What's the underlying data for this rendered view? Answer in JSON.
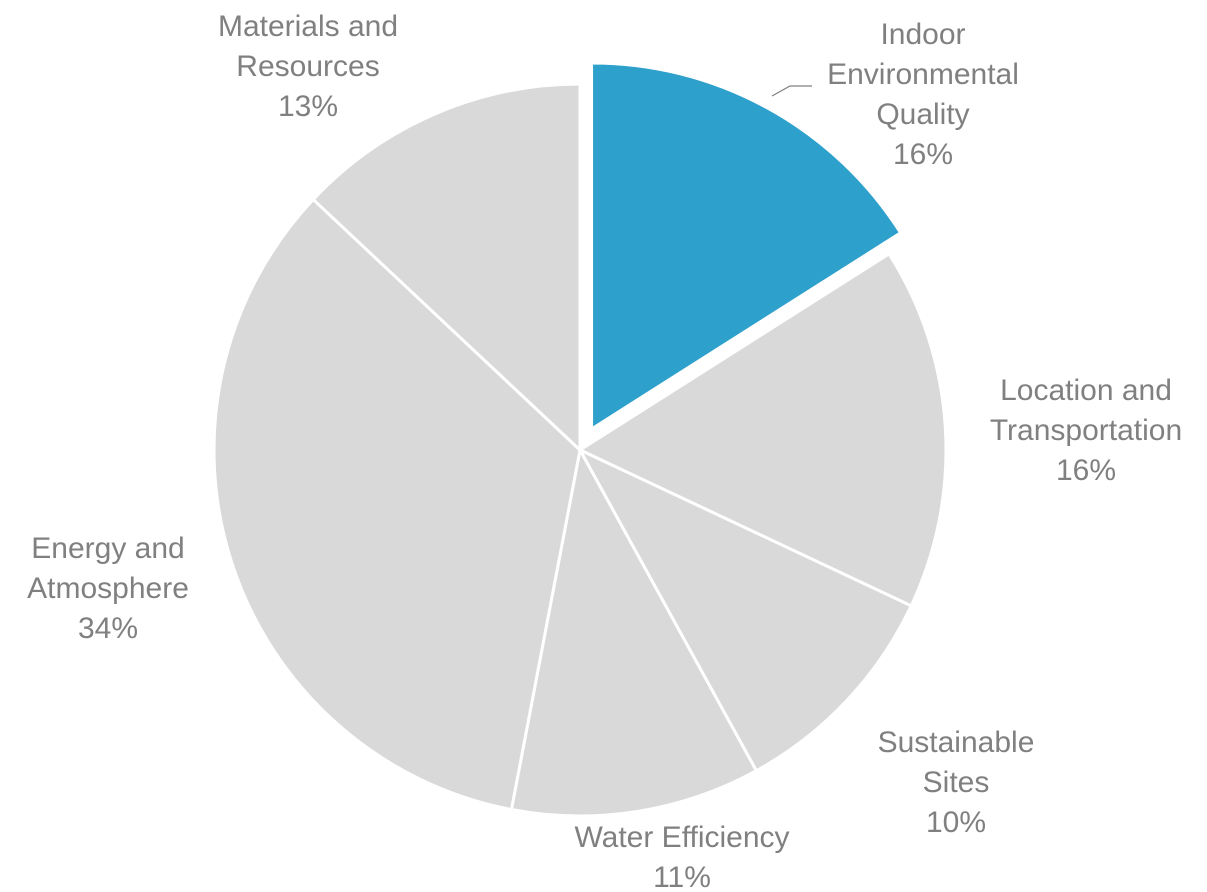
{
  "chart_data": {
    "type": "pie",
    "slices": [
      {
        "label": "Indoor Environmental Quality",
        "label_lines": [
          "Indoor",
          "Environmental",
          "Quality"
        ],
        "value": 16,
        "display": "16%",
        "highlighted": true
      },
      {
        "label": "Location and Transportation",
        "label_lines": [
          "Location and",
          "Transportation"
        ],
        "value": 16,
        "display": "16%",
        "highlighted": false
      },
      {
        "label": "Sustainable Sites",
        "label_lines": [
          "Sustainable",
          "Sites"
        ],
        "value": 10,
        "display": "10%",
        "highlighted": false
      },
      {
        "label": "Water Efficiency",
        "label_lines": [
          "Water Efficiency"
        ],
        "value": 11,
        "display": "11%",
        "highlighted": false
      },
      {
        "label": "Energy and Atmosphere",
        "label_lines": [
          "Energy and",
          "Atmosphere"
        ],
        "value": 34,
        "display": "34%",
        "highlighted": false
      },
      {
        "label": "Materials and Resources",
        "label_lines": [
          "Materials and",
          "Resources"
        ],
        "value": 13,
        "display": "13%",
        "highlighted": false
      }
    ],
    "colors": {
      "highlight": "#2da0cb",
      "default": "#d9d9d9",
      "label": "#808080",
      "separator": "#ffffff"
    },
    "legend": "none"
  }
}
